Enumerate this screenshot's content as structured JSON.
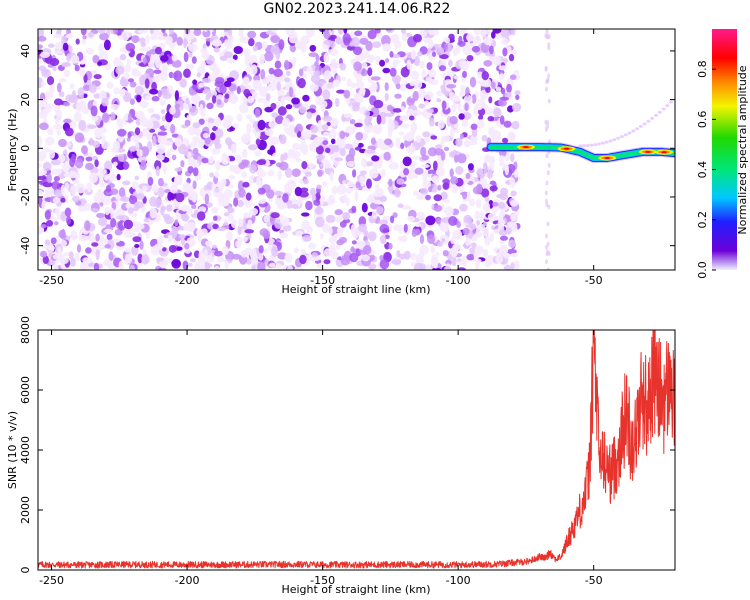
{
  "title": "GN02.2023.241.14.06.R22",
  "colors": {
    "snr_line": "#e8332c",
    "scatter_palette": [
      "#f6eafe",
      "#e2c4fb",
      "#c58ef7",
      "#a455f2",
      "#8a2be2",
      "#6f05dc"
    ],
    "colorbar": [
      "#f0f0ff",
      "#6c00d8",
      "#2020ff",
      "#00c8ff",
      "#00e676",
      "#20d800",
      "#f4f400",
      "#ff8800",
      "#ff0000",
      "#ff1a8c"
    ]
  },
  "chart_data": [
    {
      "type": "heatmap",
      "xlabel": "Height of straight line (km)",
      "ylabel": "Frequency (Hz)",
      "xlim": [
        -255,
        -20
      ],
      "ylim": [
        -50,
        49
      ],
      "xticks": [
        -250,
        -200,
        -150,
        -100,
        -50
      ],
      "yticks": [
        -40,
        -20,
        0,
        20,
        40
      ],
      "noise_region_x": [
        -255,
        -78
      ],
      "signal_track": [
        {
          "x": -88,
          "y": 0.5
        },
        {
          "x": -80,
          "y": 0.5
        },
        {
          "x": -70,
          "y": 0.5
        },
        {
          "x": -62,
          "y": 0.3
        },
        {
          "x": -55,
          "y": -1.5
        },
        {
          "x": -50,
          "y": -4
        },
        {
          "x": -45,
          "y": -4
        },
        {
          "x": -40,
          "y": -3
        },
        {
          "x": -32,
          "y": -1.5
        },
        {
          "x": -25,
          "y": -1.5
        },
        {
          "x": -20,
          "y": -2
        }
      ],
      "colorbar": {
        "label": "Normalized spectral amplitude",
        "range": [
          0.0,
          0.96
        ],
        "ticks": [
          "0.0",
          "0.2",
          "0.4",
          "0.6",
          "0.8"
        ]
      }
    },
    {
      "type": "line",
      "xlabel": "Height of straight line (km)",
      "ylabel": "SNR (10 * v/v)",
      "xlim": [
        -255,
        -20
      ],
      "ylim": [
        0,
        8000
      ],
      "xticks": [
        -250,
        -200,
        -150,
        -100,
        -50
      ],
      "yticks": [
        0,
        2000,
        4000,
        6000,
        8000
      ],
      "series": [
        {
          "x": [
            -255,
            -240,
            -220,
            -200,
            -180,
            -160,
            -140,
            -120,
            -100,
            -90,
            -85,
            -80,
            -75,
            -72,
            -70,
            -68,
            -66,
            -64,
            -62,
            -60,
            -58,
            -56,
            -54,
            -52,
            -51,
            -50,
            -48,
            -46,
            -44,
            -42,
            -40,
            -38,
            -36,
            -34,
            -32,
            -30,
            -28,
            -26,
            -24,
            -22,
            -20
          ],
          "y": [
            180,
            170,
            180,
            175,
            180,
            185,
            175,
            180,
            175,
            190,
            200,
            240,
            280,
            350,
            450,
            400,
            600,
            350,
            450,
            900,
            1300,
            1800,
            2200,
            3000,
            4500,
            7700,
            3800,
            3600,
            3200,
            3500,
            4300,
            5300,
            4200,
            4700,
            6000,
            5200,
            6700,
            6000,
            5600,
            6300,
            5400
          ]
        }
      ]
    }
  ]
}
